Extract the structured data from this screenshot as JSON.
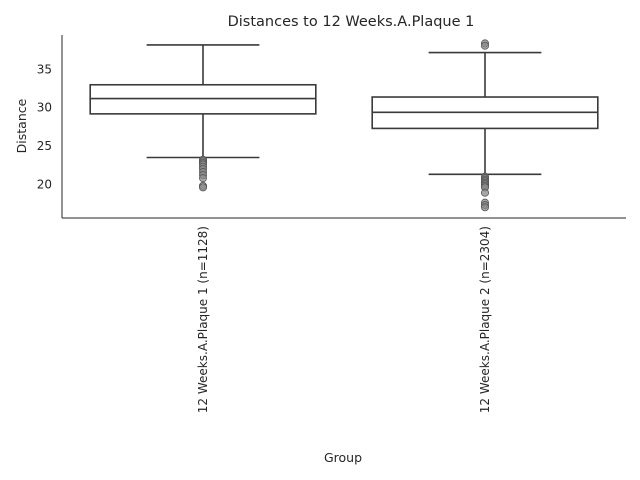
{
  "chart_data": {
    "type": "box",
    "title": "Distances to 12 Weeks.A.Plaque 1",
    "xlabel": "Group",
    "ylabel": "Distance",
    "ylim": [
      15.6,
      39.5
    ],
    "yticks": [
      20,
      25,
      30,
      35
    ],
    "grid": false,
    "categories": [
      "12 Weeks.A.Plaque 1 (n=1128)",
      "12 Weeks.A.Plaque 2 (n=2304)"
    ],
    "boxes": [
      {
        "category": "12 Weeks.A.Plaque 1 (n=1128)",
        "whisker_low": 23.5,
        "q1": 29.2,
        "median": 31.2,
        "q3": 33.0,
        "whisker_high": 38.2,
        "outliers": [
          23.2,
          23.0,
          22.8,
          22.6,
          22.3,
          22.0,
          21.6,
          21.2,
          20.8,
          19.8,
          19.6
        ]
      },
      {
        "category": "12 Weeks.A.Plaque 2 (n=2304)",
        "whisker_low": 21.3,
        "q1": 27.3,
        "median": 29.4,
        "q3": 31.4,
        "whisker_high": 37.2,
        "outliers": [
          38.4,
          38.1,
          21.0,
          20.8,
          20.6,
          20.4,
          20.2,
          20.0,
          19.8,
          19.6,
          18.9,
          17.6,
          17.3,
          17.0
        ]
      }
    ]
  }
}
